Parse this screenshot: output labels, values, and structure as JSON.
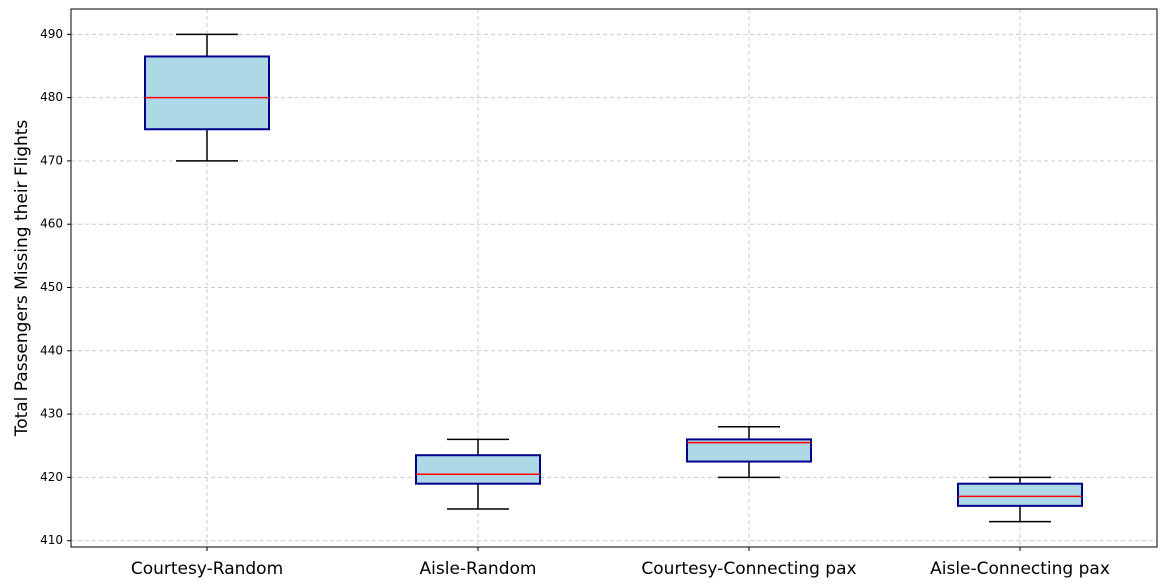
{
  "chart_data": {
    "type": "box",
    "title": "",
    "xlabel": "",
    "ylabel": "Total Passengers Missing their Flights",
    "ylim": [
      409,
      494
    ],
    "yticks": [
      410,
      420,
      430,
      440,
      450,
      460,
      470,
      480,
      490
    ],
    "grid": true,
    "categories": [
      "Courtesy-Random",
      "Aisle-Random",
      "Courtesy-Connecting pax",
      "Aisle-Connecting pax"
    ],
    "boxes": [
      {
        "whisker_low": 470,
        "q1": 475,
        "median": 480,
        "q3": 486.5,
        "whisker_high": 490
      },
      {
        "whisker_low": 415,
        "q1": 419,
        "median": 420.5,
        "q3": 423.5,
        "whisker_high": 426
      },
      {
        "whisker_low": 420,
        "q1": 422.5,
        "median": 425.5,
        "q3": 426,
        "whisker_high": 428
      },
      {
        "whisker_low": 413,
        "q1": 415.5,
        "median": 417,
        "q3": 419,
        "whisker_high": 420
      }
    ],
    "colors": {
      "box_fill": "#add8e6",
      "box_edge": "#00008b",
      "median": "#ff0000",
      "whisker": "#000000",
      "grid": "#cccccc"
    }
  }
}
